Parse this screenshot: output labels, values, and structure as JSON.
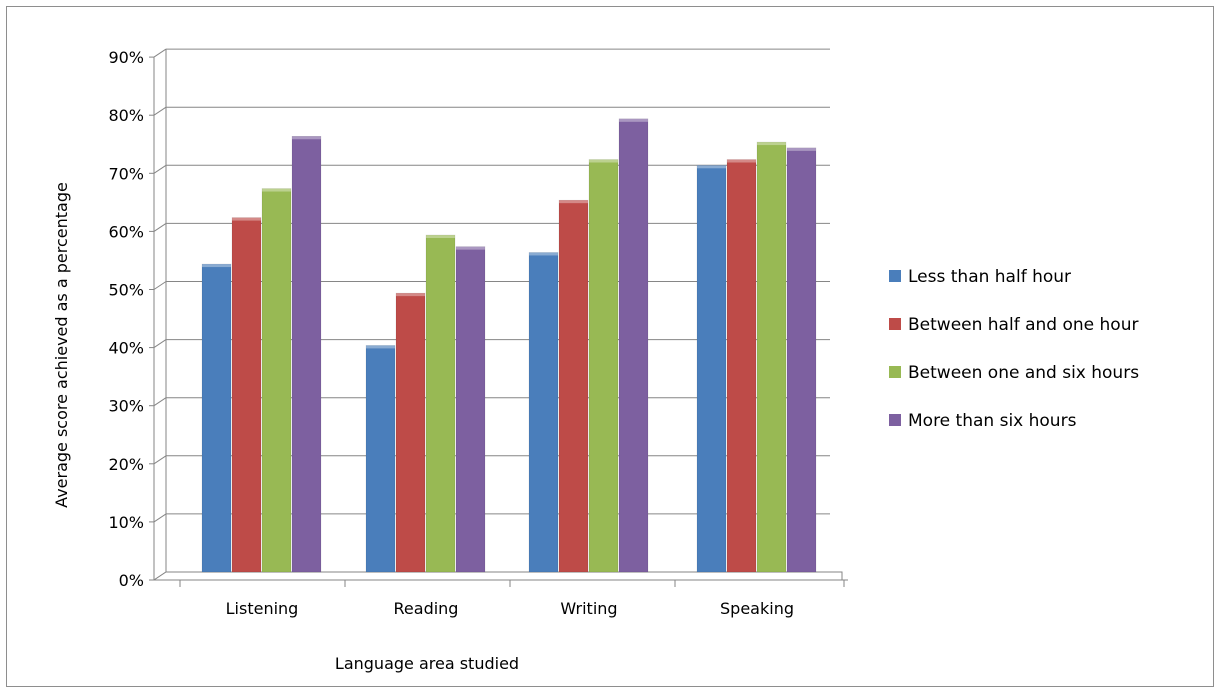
{
  "chart_data": {
    "type": "bar",
    "title": "",
    "xlabel": "Language area studied",
    "ylabel": "Average score achieved as a percentage",
    "categories": [
      "Listening",
      "Reading",
      "Writing",
      "Speaking"
    ],
    "yticks": [
      "0%",
      "10%",
      "20%",
      "30%",
      "40%",
      "50%",
      "60%",
      "70%",
      "80%",
      "90%"
    ],
    "ylim": [
      0,
      90
    ],
    "grid": true,
    "legend_position": "right",
    "series": [
      {
        "name": "Less than half hour",
        "color": "#4a7ebb",
        "values": [
          53,
          39,
          55,
          70
        ]
      },
      {
        "name": "Between half and one hour",
        "color": "#be4b48",
        "values": [
          61,
          48,
          64,
          71
        ]
      },
      {
        "name": "Between one and six hours",
        "color": "#98b954",
        "values": [
          66,
          58,
          71,
          74
        ]
      },
      {
        "name": "More than six hours",
        "color": "#7d60a0",
        "values": [
          75,
          56,
          78,
          73
        ]
      }
    ]
  }
}
